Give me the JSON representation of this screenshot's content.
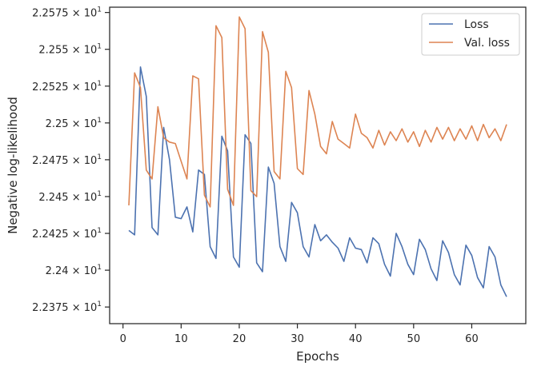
{
  "chart_data": {
    "type": "line",
    "xlabel": "Epochs",
    "ylabel": "Negative log-likelihood",
    "xlim": [
      -2.3,
      69.3
    ],
    "ylim": [
      22.3637,
      22.5786
    ],
    "xticks": [
      0,
      10,
      20,
      30,
      40,
      50,
      60
    ],
    "yticks": [
      {
        "value": 22.375,
        "mantissa": "2.2375"
      },
      {
        "value": 22.4,
        "mantissa": "2.24"
      },
      {
        "value": 22.425,
        "mantissa": "2.2425"
      },
      {
        "value": 22.45,
        "mantissa": "2.245"
      },
      {
        "value": 22.475,
        "mantissa": "2.2475"
      },
      {
        "value": 22.5,
        "mantissa": "2.25"
      },
      {
        "value": 22.525,
        "mantissa": "2.2525"
      },
      {
        "value": 22.55,
        "mantissa": "2.255"
      },
      {
        "value": 22.575,
        "mantissa": "2.2575"
      }
    ],
    "tick_multiplier": "×",
    "tick_base": "10",
    "tick_exponent": "1",
    "legend": "upper right",
    "grid": false,
    "x": [
      1,
      2,
      3,
      4,
      5,
      6,
      7,
      8,
      9,
      10,
      11,
      12,
      13,
      14,
      15,
      16,
      17,
      18,
      19,
      20,
      21,
      22,
      23,
      24,
      25,
      26,
      27,
      28,
      29,
      30,
      31,
      32,
      33,
      34,
      35,
      36,
      37,
      38,
      39,
      40,
      41,
      42,
      43,
      44,
      45,
      46,
      47,
      48,
      49,
      50,
      51,
      52,
      53,
      54,
      55,
      56,
      57,
      58,
      59,
      60,
      61,
      62,
      63,
      64,
      65,
      66
    ],
    "series": [
      {
        "name": "Loss",
        "color": "#4c72b0",
        "values": [
          22.427,
          22.424,
          22.538,
          22.518,
          22.429,
          22.424,
          22.497,
          22.475,
          22.436,
          22.435,
          22.443,
          22.426,
          22.468,
          22.465,
          22.416,
          22.408,
          22.491,
          22.481,
          22.409,
          22.402,
          22.492,
          22.486,
          22.405,
          22.399,
          22.47,
          22.459,
          22.416,
          22.406,
          22.446,
          22.439,
          22.416,
          22.409,
          22.431,
          22.42,
          22.424,
          22.419,
          22.415,
          22.406,
          22.422,
          22.415,
          22.414,
          22.405,
          22.422,
          22.418,
          22.404,
          22.396,
          22.425,
          22.416,
          22.404,
          22.397,
          22.421,
          22.414,
          22.401,
          22.393,
          22.42,
          22.412,
          22.397,
          22.39,
          22.417,
          22.41,
          22.395,
          22.388,
          22.416,
          22.409,
          22.39,
          22.382
        ]
      },
      {
        "name": "Val. loss",
        "color": "#dd8452",
        "values": [
          22.444,
          22.534,
          22.524,
          22.468,
          22.462,
          22.511,
          22.49,
          22.487,
          22.486,
          22.474,
          22.462,
          22.532,
          22.53,
          22.451,
          22.443,
          22.566,
          22.558,
          22.455,
          22.444,
          22.572,
          22.564,
          22.454,
          22.45,
          22.562,
          22.548,
          22.467,
          22.462,
          22.535,
          22.524,
          22.469,
          22.465,
          22.522,
          22.506,
          22.484,
          22.479,
          22.501,
          22.489,
          22.486,
          22.483,
          22.506,
          22.493,
          22.49,
          22.483,
          22.495,
          22.485,
          22.494,
          22.488,
          22.496,
          22.487,
          22.494,
          22.484,
          22.495,
          22.487,
          22.497,
          22.489,
          22.497,
          22.488,
          22.496,
          22.489,
          22.498,
          22.488,
          22.499,
          22.49,
          22.496,
          22.488,
          22.499
        ]
      }
    ]
  }
}
